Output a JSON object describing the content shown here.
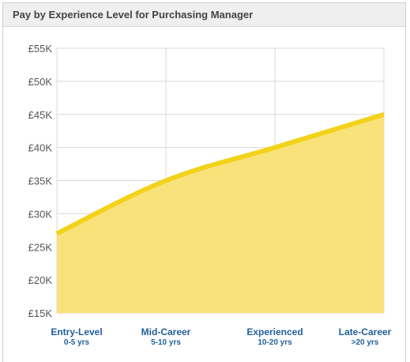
{
  "header": {
    "title": "Pay by Experience Level for Purchasing Manager"
  },
  "colors": {
    "line": "#f2d21b",
    "area": "#fae27a",
    "grid": "#d9d9d9",
    "axis_text": "#555555",
    "category_text": "#1f5f9a"
  },
  "chart_data": {
    "type": "area",
    "title": "Pay by Experience Level for Purchasing Manager",
    "categories": [
      "Entry-Level",
      "Mid-Career",
      "Experienced",
      "Late-Career"
    ],
    "category_sublabels": [
      "0-5 yrs",
      "5-10 yrs",
      "10-20 yrs",
      ">20 yrs"
    ],
    "values": [
      27000,
      35000,
      40000,
      45000
    ],
    "ylim": [
      15000,
      55000
    ],
    "yticks": [
      15000,
      20000,
      25000,
      30000,
      35000,
      40000,
      45000,
      50000,
      55000
    ],
    "ytick_labels": [
      "£15K",
      "£20K",
      "£25K",
      "£30K",
      "£35K",
      "£40K",
      "£45K",
      "£50K",
      "£55K"
    ],
    "grid": true,
    "legend": "none"
  }
}
